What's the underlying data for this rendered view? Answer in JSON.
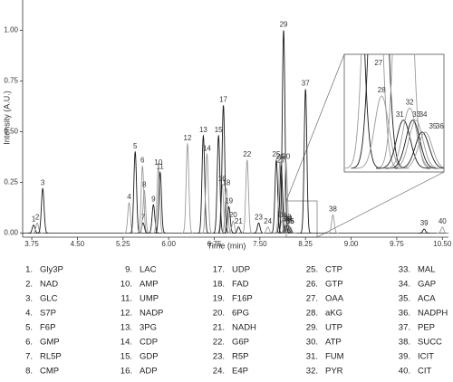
{
  "chart_data": {
    "type": "chromatogram",
    "x_label": "Time (min)",
    "y_label": "Intensity (A.U.)",
    "xlim": [
      3.6,
      10.6
    ],
    "ylim": [
      -0.02,
      1.15
    ],
    "xticks": [
      {
        "value": 3.75,
        "label": "3.75"
      },
      {
        "value": 4.5,
        "label": "4.50"
      },
      {
        "value": 5.25,
        "label": "5.25"
      },
      {
        "value": 6,
        "label": "6.00"
      },
      {
        "value": 6.75,
        "label": "6.75"
      },
      {
        "value": 7.5,
        "label": "7.50"
      },
      {
        "value": 8.25,
        "label": "8.25"
      },
      {
        "value": 9,
        "label": "9.00"
      },
      {
        "value": 9.75,
        "label": "9.75"
      },
      {
        "value": 10.5,
        "label": "10.50"
      }
    ],
    "yticks": [
      {
        "value": 0,
        "label": "0.00"
      },
      {
        "value": 0.25,
        "label": "0.25"
      },
      {
        "value": 0.5,
        "label": "0.50"
      },
      {
        "value": 0.75,
        "label": "0.75"
      },
      {
        "value": 1,
        "label": "1.00"
      }
    ],
    "color": "#1a1a1a",
    "peaks": {
      "labels": [
        "1",
        "2",
        "3",
        "4",
        "5",
        "6",
        "7",
        "8",
        "9",
        "10",
        "11",
        "12",
        "13",
        "14",
        "15",
        "16",
        "17",
        "18",
        "19",
        "20",
        "21",
        "22",
        "23",
        "24",
        "25",
        "26",
        "27",
        "28",
        "29",
        "30",
        "31",
        "32",
        "33",
        "34",
        "35",
        "36",
        "37",
        "38",
        "39",
        "40"
      ],
      "x": [
        3.78,
        3.84,
        3.93,
        5.35,
        5.45,
        5.57,
        5.58,
        5.6,
        5.75,
        5.83,
        5.86,
        6.31,
        6.57,
        6.63,
        6.82,
        6.88,
        6.9,
        6.95,
        6.99,
        7.06,
        7.15,
        7.29,
        7.48,
        7.63,
        7.77,
        7.83,
        7.85,
        7.86,
        7.89,
        7.93,
        7.93,
        7.95,
        7.96,
        7.97,
        7.99,
        8.0,
        8.25,
        8.7,
        10.2,
        10.5
      ],
      "values": [
        0.04,
        0.05,
        0.22,
        0.15,
        0.4,
        0.33,
        0.05,
        0.21,
        0.14,
        0.32,
        0.3,
        0.44,
        0.48,
        0.39,
        0.48,
        0.24,
        0.63,
        0.22,
        0.13,
        0.06,
        0.03,
        0.36,
        0.05,
        0.03,
        0.36,
        0.35,
        0.33,
        0.06,
        1.0,
        0.35,
        0.04,
        0.05,
        0.04,
        0.04,
        0.03,
        0.03,
        0.71,
        0.09,
        0.02,
        0.03
      ]
    },
    "compounds": [
      {
        "number": "1.",
        "name": "Gly3P"
      },
      {
        "number": "2.",
        "name": "NAD"
      },
      {
        "number": "3.",
        "name": "GLC"
      },
      {
        "number": "4.",
        "name": "S7P"
      },
      {
        "number": "5.",
        "name": "F6P"
      },
      {
        "number": "6.",
        "name": "GMP"
      },
      {
        "number": "7.",
        "name": "RL5P"
      },
      {
        "number": "8.",
        "name": "CMP"
      },
      {
        "number": "9.",
        "name": "LAC"
      },
      {
        "number": "10.",
        "name": "AMP"
      },
      {
        "number": "11.",
        "name": "UMP"
      },
      {
        "number": "12.",
        "name": "NADP"
      },
      {
        "number": "13.",
        "name": "3PG"
      },
      {
        "number": "14.",
        "name": "CDP"
      },
      {
        "number": "15.",
        "name": "GDP"
      },
      {
        "number": "16.",
        "name": "ADP"
      },
      {
        "number": "17.",
        "name": "UDP"
      },
      {
        "number": "18.",
        "name": "FAD"
      },
      {
        "number": "19.",
        "name": "F16P"
      },
      {
        "number": "20.",
        "name": "6PG"
      },
      {
        "number": "21.",
        "name": "NADH"
      },
      {
        "number": "22.",
        "name": "G6P"
      },
      {
        "number": "23.",
        "name": "R5P"
      },
      {
        "number": "24.",
        "name": "E4P"
      },
      {
        "number": "25.",
        "name": "CTP"
      },
      {
        "number": "26.",
        "name": "GTP"
      },
      {
        "number": "27.",
        "name": "OAA"
      },
      {
        "number": "28.",
        "name": "aKG"
      },
      {
        "number": "29.",
        "name": "UTP"
      },
      {
        "number": "30.",
        "name": "ATP"
      },
      {
        "number": "31.",
        "name": "FUM"
      },
      {
        "number": "32.",
        "name": "PYR"
      },
      {
        "number": "33.",
        "name": "MAL"
      },
      {
        "number": "34.",
        "name": "GAP"
      },
      {
        "number": "35.",
        "name": "ACA"
      },
      {
        "number": "36.",
        "name": "NADPH"
      },
      {
        "number": "37.",
        "name": "PEP"
      },
      {
        "number": "38.",
        "name": "SUCC"
      },
      {
        "number": "39.",
        "name": "ICIT"
      },
      {
        "number": "40.",
        "name": "CIT"
      }
    ]
  }
}
